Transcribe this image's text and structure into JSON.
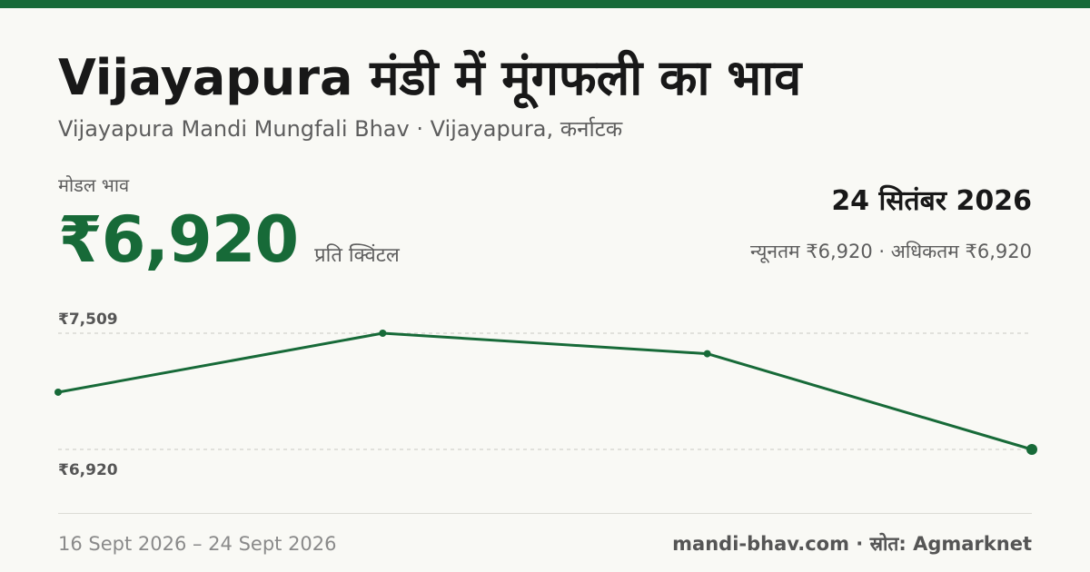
{
  "header": {
    "title": "Vijayapura मंडी में मूंगफली का भाव",
    "subtitle": "Vijayapura Mandi Mungfali Bhav · Vijayapura, कर्नाटक"
  },
  "price": {
    "label": "मोडल भाव",
    "value": "₹6,920",
    "unit": "प्रति क्विंटल"
  },
  "date": "24 सितंबर 2026",
  "range_text": "न्यूनतम ₹6,920 · अधिकतम ₹6,920",
  "footer": {
    "date_range": "16 Sept 2026 – 24 Sept 2026",
    "source": "mandi-bhav.com · स्रोत: Agmarknet"
  },
  "colors": {
    "accent": "#176a38",
    "text": "#181818",
    "muted": "#5d5d5d",
    "background": "#f9f9f5"
  },
  "chart_data": {
    "type": "line",
    "series": [
      {
        "values": [
          7210,
          7509,
          7405,
          6920
        ]
      }
    ],
    "ylim": [
      6920,
      7509
    ],
    "y_tick_labels": [
      "₹7,509",
      "₹6,920"
    ],
    "grid": true,
    "legend": "none"
  }
}
